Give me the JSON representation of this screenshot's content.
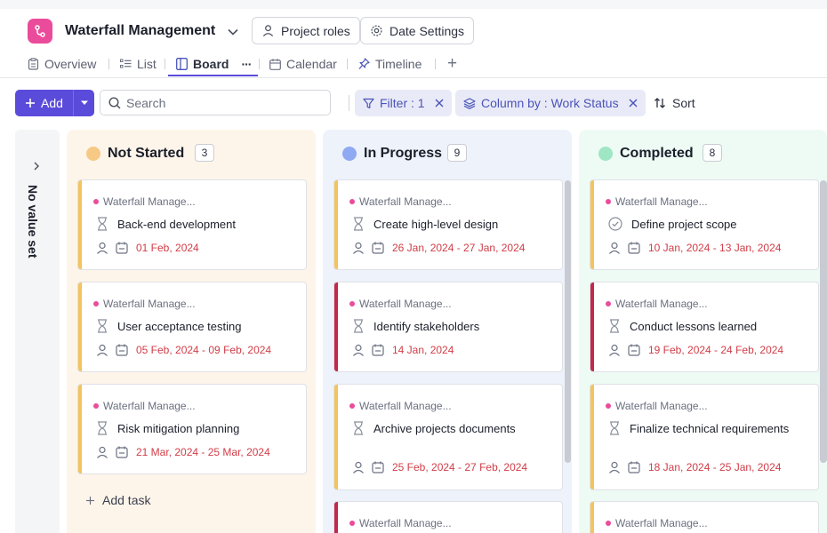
{
  "header": {
    "title": "Waterfall Management",
    "project_roles": "Project roles",
    "date_settings": "Date Settings"
  },
  "nav": {
    "tabs": [
      {
        "label": "Overview",
        "icon": "clipboard-icon"
      },
      {
        "label": "List",
        "icon": "list-icon"
      },
      {
        "label": "Board",
        "icon": "board-icon",
        "active": true
      },
      {
        "label": "Calendar",
        "icon": "calendar-icon"
      },
      {
        "label": "Timeline",
        "icon": "pin-icon"
      }
    ],
    "more": "···",
    "add_view": "+"
  },
  "toolbar": {
    "add_label": "Add",
    "search_placeholder": "Search",
    "filter_label": "Filter : 1",
    "column_by_label": "Column by : Work Status",
    "sort_label": "Sort"
  },
  "no_value": {
    "label": "No value set"
  },
  "columns": [
    {
      "name": "Not Started",
      "count": "3",
      "color": "#f6c985",
      "background": "#fef5ea",
      "cards": [
        {
          "project": "Waterfall Manage...",
          "title": "Back-end development",
          "date": "01 Feb, 2024",
          "bar": "#f3c45f",
          "status": "hourglass"
        },
        {
          "project": "Waterfall Manage...",
          "title": "User acceptance testing",
          "date": "05 Feb, 2024 - 09 Feb, 2024",
          "bar": "#f3c45f",
          "status": "hourglass"
        },
        {
          "project": "Waterfall Manage...",
          "title": "Risk mitigation planning",
          "date": "21 Mar, 2024 - 25 Mar, 2024",
          "bar": "#f3c45f",
          "status": "hourglass"
        }
      ],
      "add_task": "Add task"
    },
    {
      "name": "In Progress",
      "count": "9",
      "color": "#8fa9f3",
      "background": "#eef2fb",
      "cards": [
        {
          "project": "Waterfall Manage...",
          "title": "Create high-level design",
          "date": "26 Jan, 2024 - 27 Jan, 2024",
          "bar": "#f3c45f",
          "status": "hourglass"
        },
        {
          "project": "Waterfall Manage...",
          "title": "Identify stakeholders",
          "date": "14 Jan, 2024",
          "bar": "#c0294b",
          "status": "hourglass"
        },
        {
          "project": "Waterfall Manage...",
          "title": "Archive projects documents",
          "date": "25 Feb, 2024 - 27 Feb, 2024",
          "bar": "#f3c45f",
          "status": "hourglass"
        },
        {
          "project": "Waterfall Manage...",
          "title": "",
          "date": "",
          "bar": "#c0294b",
          "status": "hourglass"
        }
      ]
    },
    {
      "name": "Completed",
      "count": "8",
      "color": "#9fe6c4",
      "background": "#eefbf5",
      "cards": [
        {
          "project": "Waterfall Manage...",
          "title": "Define project scope",
          "date": "10 Jan, 2024 - 13 Jan, 2024",
          "bar": "#f3c45f",
          "status": "check"
        },
        {
          "project": "Waterfall Manage...",
          "title": "Conduct lessons learned",
          "date": "19 Feb, 2024 - 24 Feb, 2024",
          "bar": "#c0294b",
          "status": "hourglass"
        },
        {
          "project": "Waterfall Manage...",
          "title": "Finalize technical requirements",
          "date": "18 Jan, 2024 - 25 Jan, 2024",
          "bar": "#f3c45f",
          "status": "hourglass"
        },
        {
          "project": "Waterfall Manage...",
          "title": "",
          "date": "",
          "bar": "#f3c45f",
          "status": "hourglass"
        }
      ]
    }
  ],
  "colors": {
    "accent": "#5b4bdb",
    "date_red": "#d13d47",
    "app_icon": "#ea4c9b"
  }
}
